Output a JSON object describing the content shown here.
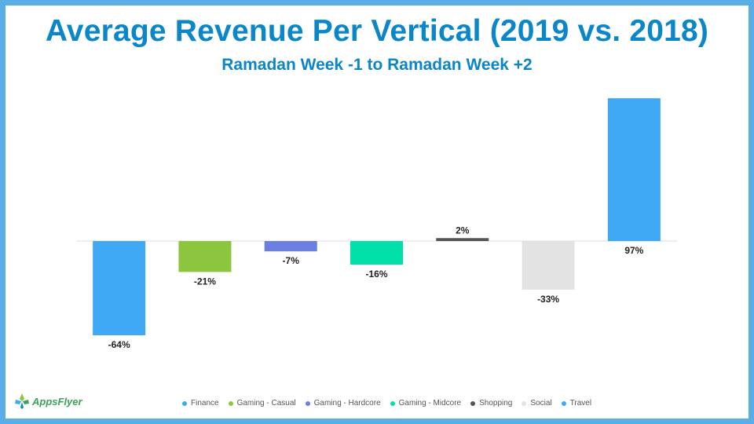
{
  "chart_data": {
    "type": "bar",
    "title": "Average Revenue Per Vertical (2019 vs. 2018)",
    "subtitle": "Ramadan Week -1 to Ramadan Week +2",
    "categories": [
      "Finance",
      "Gaming - Casual",
      "Gaming - Hardcore",
      "Gaming - Midcore",
      "Shopping",
      "Social",
      "Travel"
    ],
    "values": [
      -64,
      -21,
      -7,
      -16,
      2,
      -33,
      97
    ],
    "data_labels": [
      "-64%",
      "-21%",
      "-7%",
      "-16%",
      "2%",
      "-33%",
      "97%"
    ],
    "colors": [
      "#3fa9f5",
      "#8cc63f",
      "#6a7fe0",
      "#00e0a8",
      "#555555",
      "#e3e3e3",
      "#3fa9f5"
    ],
    "ylim": [
      -70,
      100
    ],
    "xlabel": "",
    "ylabel": "",
    "legend_position": "bottom"
  },
  "branding": {
    "logo_text": "AppsFlyer"
  }
}
